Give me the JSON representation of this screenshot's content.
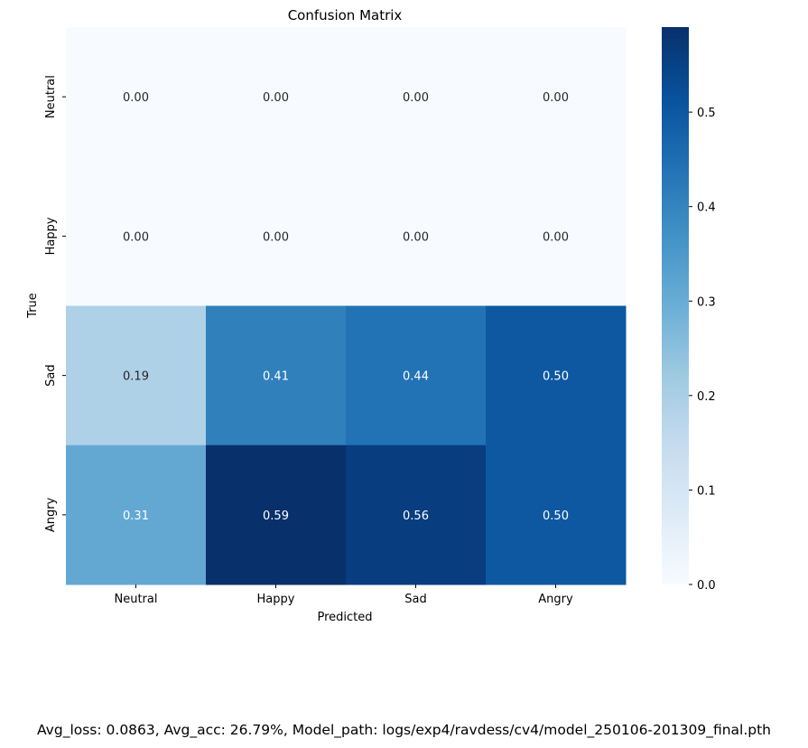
{
  "chart_data": {
    "type": "heatmap",
    "title": "Confusion Matrix",
    "xlabel": "Predicted",
    "ylabel": "True",
    "x_categories": [
      "Neutral",
      "Happy",
      "Sad",
      "Angry"
    ],
    "y_categories": [
      "Neutral",
      "Happy",
      "Sad",
      "Angry"
    ],
    "values": [
      [
        0.0,
        0.0,
        0.0,
        0.0
      ],
      [
        0.0,
        0.0,
        0.0,
        0.0
      ],
      [
        0.19,
        0.41,
        0.44,
        0.5
      ],
      [
        0.31,
        0.59,
        0.56,
        0.5
      ]
    ],
    "annotation_format": "0.00",
    "colormap": "Blues",
    "colorbar": {
      "min": 0.0,
      "max": 0.59,
      "ticks": [
        0.0,
        0.1,
        0.2,
        0.3,
        0.4,
        0.5
      ],
      "tick_labels": [
        "0.0",
        "0.1",
        "0.2",
        "0.3",
        "0.4",
        "0.5"
      ]
    },
    "grid": false
  },
  "footer": {
    "text": "Avg_loss: 0.0863, Avg_acc: 26.79%, Model_path: logs/exp4/ravdess/cv4/model_250106-201309_final.pth"
  }
}
